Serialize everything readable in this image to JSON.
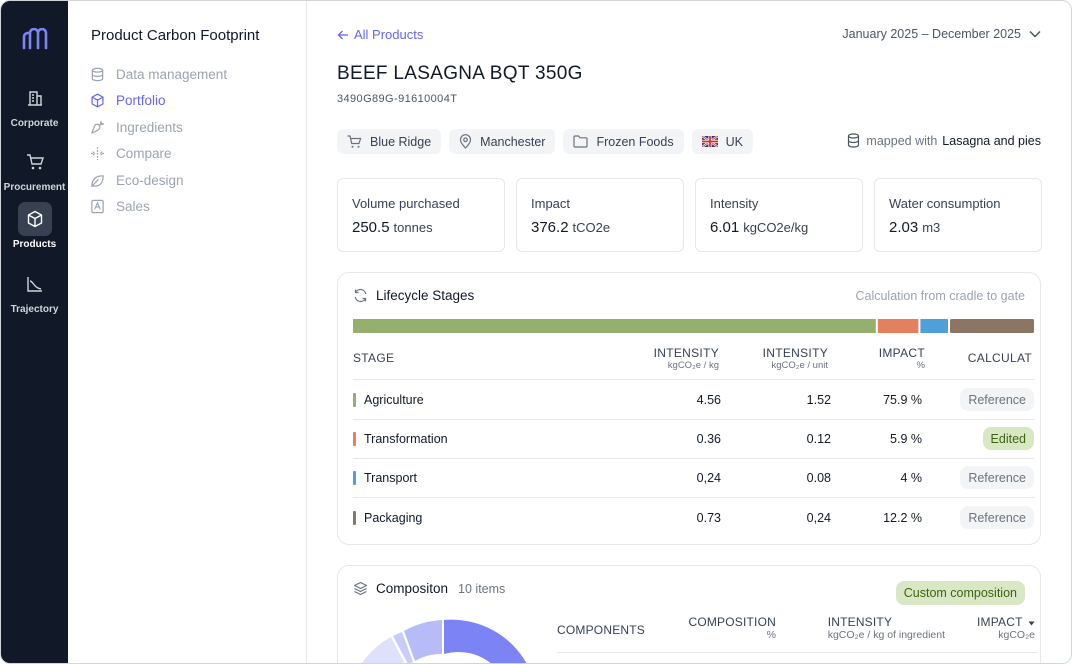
{
  "rail": {
    "items": [
      {
        "label": "Corporate",
        "icon": "building-icon"
      },
      {
        "label": "Procurement",
        "icon": "cart-icon"
      },
      {
        "label": "Products",
        "icon": "box-icon"
      },
      {
        "label": "Trajectory",
        "icon": "chart-icon"
      }
    ],
    "active": "Products"
  },
  "nav": {
    "title": "Product Carbon Footprint",
    "items": [
      {
        "label": "Data management",
        "icon": "database-icon"
      },
      {
        "label": "Portfolio",
        "icon": "box-icon"
      },
      {
        "label": "Ingredients",
        "icon": "carrot-icon"
      },
      {
        "label": "Compare",
        "icon": "compare-icon"
      },
      {
        "label": "Eco-design",
        "icon": "leaf-icon"
      },
      {
        "label": "Sales",
        "icon": "sales-icon"
      }
    ]
  },
  "header": {
    "back_label": "All Products",
    "date_range": "January 2025 – December 2025",
    "product_name": "BEEF LASAGNA BQT 350G",
    "product_code": "3490G89G-91610004T"
  },
  "tags": [
    {
      "label": "Blue Ridge",
      "icon": "cart-icon"
    },
    {
      "label": "Manchester",
      "icon": "location-pin-icon"
    },
    {
      "label": "Frozen Foods",
      "icon": "folder-icon"
    },
    {
      "label": "UK",
      "icon": "uk-flag-icon"
    }
  ],
  "mapping": {
    "prefix": "mapped with",
    "value": "Lasagna and pies"
  },
  "kpis": [
    {
      "label": "Volume purchased",
      "value": "250.5",
      "unit": "tonnes"
    },
    {
      "label": "Impact",
      "value": "376.2",
      "unit": "tCO2e"
    },
    {
      "label": "Intensity",
      "value": "6.01",
      "unit": "kgCO2e/kg"
    },
    {
      "label": "Water consumption",
      "value": "2.03",
      "unit": "m3"
    }
  ],
  "lifecycle": {
    "title": "Lifecycle Stages",
    "note": "Calculation from cradle to gate",
    "headers": {
      "stage": "STAGE",
      "intensity_kg": "INTENSITY",
      "intensity_kg_sub": "kgCO₂e / kg",
      "intensity_unit": "INTENSITY",
      "intensity_unit_sub": "kgCO₂e / unit",
      "impact": "IMPACT",
      "impact_sub": "%",
      "calc": "CALCULAT"
    },
    "rows": [
      {
        "stage": "Agriculture",
        "int_kg": "4.56",
        "int_unit": "1.52",
        "impact": "75.9 %",
        "share": 75.9,
        "calc": "Reference",
        "color": "#95b06d"
      },
      {
        "stage": "Transformation",
        "int_kg": "0.36",
        "int_unit": "0.12",
        "impact": "5.9 %",
        "share": 5.9,
        "calc": "Edited",
        "color": "#e2805f"
      },
      {
        "stage": "Transport",
        "int_kg": "0,24",
        "int_unit": "0.08",
        "impact": "4 %",
        "share": 4,
        "calc": "Reference",
        "color": "#4f9fd8"
      },
      {
        "stage": "Packaging",
        "int_kg": "0.73",
        "int_unit": "0,24",
        "impact": "12.2 %",
        "share": 12.2,
        "calc": "Reference",
        "color": "#8c7565"
      }
    ]
  },
  "composition": {
    "title": "Compositon",
    "count": "10 items",
    "badge": "Custom composition",
    "headers": {
      "components": "COMPONENTS",
      "composition": "COMPOSITION",
      "composition_sub": "%",
      "intensity": "INTENSITY",
      "intensity_sub": "kgCO₂e / kg of ingredient",
      "impact": "IMPACT",
      "impact_sub": "kgCO₂e"
    }
  }
}
